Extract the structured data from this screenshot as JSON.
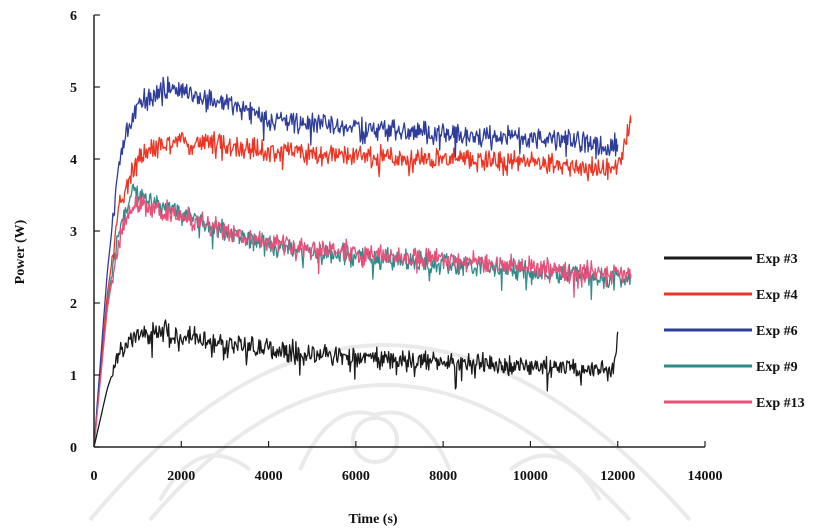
{
  "chart_data": {
    "type": "line",
    "title": "",
    "xlabel": "Time (s)",
    "ylabel": "Power (W)",
    "xlim": [
      0,
      14000
    ],
    "ylim": [
      0,
      6
    ],
    "xticks": [
      0,
      2000,
      4000,
      6000,
      8000,
      10000,
      12000,
      14000
    ],
    "yticks": [
      0,
      1,
      2,
      3,
      4,
      5,
      6
    ],
    "grid": false,
    "legend_position": "right",
    "series": [
      {
        "name": "Exp #3",
        "color": "#1a1a1a",
        "x": [
          0,
          300,
          600,
          1000,
          1500,
          2000,
          3000,
          4000,
          6000,
          8000,
          10000,
          11900,
          12000
        ],
        "y": [
          0,
          0.8,
          1.35,
          1.55,
          1.6,
          1.55,
          1.45,
          1.35,
          1.25,
          1.18,
          1.12,
          1.08,
          1.6
        ]
      },
      {
        "name": "Exp #4",
        "color": "#ee3524",
        "x": [
          0,
          300,
          600,
          1000,
          1500,
          2000,
          3000,
          4000,
          6000,
          8000,
          10000,
          12000,
          12300
        ],
        "y": [
          0,
          2.1,
          3.4,
          4.0,
          4.2,
          4.25,
          4.2,
          4.1,
          4.05,
          4.0,
          3.95,
          3.85,
          4.5
        ]
      },
      {
        "name": "Exp #6",
        "color": "#2e3d9a",
        "x": [
          0,
          300,
          600,
          1000,
          1500,
          1800,
          2500,
          3500,
          4000,
          6000,
          8000,
          10000,
          12000
        ],
        "y": [
          0,
          2.4,
          4.1,
          4.75,
          4.95,
          5.0,
          4.85,
          4.7,
          4.55,
          4.45,
          4.35,
          4.3,
          4.2
        ]
      },
      {
        "name": "Exp #9",
        "color": "#2e8b8b",
        "x": [
          0,
          300,
          600,
          900,
          1200,
          2000,
          3000,
          4000,
          6000,
          8000,
          10000,
          12000,
          12300
        ],
        "y": [
          0,
          2.0,
          3.1,
          3.55,
          3.45,
          3.25,
          3.0,
          2.8,
          2.65,
          2.55,
          2.45,
          2.35,
          2.4
        ]
      },
      {
        "name": "Exp #13",
        "color": "#e8507a",
        "x": [
          0,
          300,
          600,
          900,
          1200,
          2000,
          3000,
          4000,
          6000,
          8000,
          10000,
          12000,
          12300
        ],
        "y": [
          0,
          1.9,
          3.0,
          3.4,
          3.35,
          3.2,
          3.0,
          2.85,
          2.7,
          2.6,
          2.5,
          2.4,
          2.4
        ]
      }
    ]
  }
}
